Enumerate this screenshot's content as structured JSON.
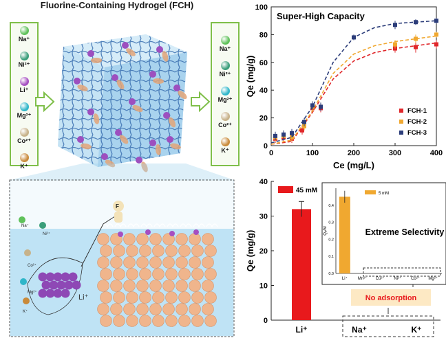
{
  "left": {
    "title": "Fluorine-Containing Hydrogel (FCH)",
    "ions_in": [
      {
        "label": "Na⁺",
        "color": "#5fc15a"
      },
      {
        "label": "Ni²⁺",
        "color": "#3a9e7a"
      },
      {
        "label": "Li⁺",
        "color": "#a64fc1"
      },
      {
        "label": "Mg²⁺",
        "color": "#2fb6c9"
      },
      {
        "label": "Co²⁺",
        "color": "#c7b28a"
      },
      {
        "label": "K⁺",
        "color": "#c98a3a"
      }
    ],
    "ions_out": [
      {
        "label": "Na⁺",
        "color": "#5fc15a"
      },
      {
        "label": "Ni²⁺",
        "color": "#3a9e7a"
      },
      {
        "label": "Mg²⁺",
        "color": "#2fb6c9"
      },
      {
        "label": "Co²⁺",
        "color": "#c7b28a"
      },
      {
        "label": "K⁺",
        "color": "#c98a3a"
      }
    ],
    "zoom_labels": {
      "na": "Na⁺",
      "ni": "Ni²⁺",
      "co": "Co²⁺",
      "mg": "Mg²⁺",
      "k": "K⁺",
      "li": "Li⁺",
      "f": "F"
    }
  },
  "chart_data": [
    {
      "type": "scatter",
      "title": "Super-High Capacity",
      "xlabel": "Ce (mg/L)",
      "ylabel": "Qe (mg/g)",
      "xlim": [
        0,
        400
      ],
      "ylim": [
        0,
        100
      ],
      "xticks": [
        0,
        100,
        200,
        300,
        400
      ],
      "yticks": [
        0,
        20,
        40,
        60,
        80,
        100
      ],
      "legend_position": "bottom-right",
      "series": [
        {
          "name": "FCH-1",
          "color": "#e0272b",
          "points": [
            [
              10,
              5
            ],
            [
              30,
              6
            ],
            [
              50,
              5
            ],
            [
              75,
              11
            ],
            [
              100,
              27
            ],
            [
              120,
              27
            ],
            [
              300,
              70
            ],
            [
              350,
              71
            ],
            [
              400,
              73
            ]
          ],
          "errors": [
            3,
            3,
            3,
            3,
            3,
            3,
            3,
            4,
            3
          ],
          "fit": [
            [
              0,
              1
            ],
            [
              50,
              3
            ],
            [
              100,
              24
            ],
            [
              150,
              48
            ],
            [
              200,
              61
            ],
            [
              250,
              67
            ],
            [
              300,
              70
            ],
            [
              350,
              72
            ],
            [
              400,
              74
            ]
          ]
        },
        {
          "name": "FCH-2",
          "color": "#f0a830",
          "points": [
            [
              10,
              6
            ],
            [
              30,
              7
            ],
            [
              50,
              6
            ],
            [
              80,
              14
            ],
            [
              100,
              28
            ],
            [
              120,
              28
            ],
            [
              300,
              73
            ],
            [
              350,
              77
            ],
            [
              400,
              80
            ]
          ],
          "errors": [
            3,
            3,
            3,
            3,
            3,
            3,
            3,
            3,
            2
          ],
          "fit": [
            [
              0,
              1
            ],
            [
              50,
              4
            ],
            [
              100,
              25
            ],
            [
              150,
              52
            ],
            [
              200,
              66
            ],
            [
              250,
              72
            ],
            [
              300,
              75
            ],
            [
              350,
              77
            ],
            [
              400,
              79
            ]
          ]
        },
        {
          "name": "FCH-3",
          "color": "#2c3d7a",
          "points": [
            [
              10,
              7
            ],
            [
              30,
              8
            ],
            [
              50,
              9
            ],
            [
              80,
              17
            ],
            [
              100,
              29
            ],
            [
              120,
              28
            ],
            [
              200,
              78
            ],
            [
              300,
              87
            ],
            [
              350,
              89
            ],
            [
              400,
              90
            ]
          ],
          "errors": [
            3,
            3,
            3,
            3,
            3,
            3,
            2,
            3,
            2,
            2
          ],
          "fit": [
            [
              0,
              2
            ],
            [
              50,
              6
            ],
            [
              100,
              28
            ],
            [
              150,
              60
            ],
            [
              200,
              78
            ],
            [
              250,
              85
            ],
            [
              300,
              88
            ],
            [
              350,
              89
            ],
            [
              400,
              90
            ]
          ]
        }
      ]
    },
    {
      "type": "bar",
      "title": "",
      "ylabel": "Qe (mg/g)",
      "ylim": [
        0,
        40
      ],
      "yticks": [
        0,
        10,
        20,
        30,
        40
      ],
      "categories": [
        "Li⁺",
        "Na⁺",
        "K⁺"
      ],
      "series": [
        {
          "name": "45 mM",
          "color": "#e8191c",
          "values": [
            32,
            0,
            0
          ],
          "errors": [
            2.2,
            0,
            0
          ]
        }
      ],
      "annotation": "No adsorption"
    },
    {
      "type": "bar",
      "title": "Extreme Selectivity",
      "ylabel": "Qₑ/M",
      "ylim": [
        0,
        0.5
      ],
      "yticks": [
        0.0,
        0.1,
        0.2,
        0.3,
        0.4
      ],
      "categories": [
        "Li⁺",
        "Mn²⁺",
        "Cu²⁺",
        "Ni²⁺",
        "Co²⁺",
        "Mg²⁺"
      ],
      "series": [
        {
          "name": "5 mM",
          "color": "#f0a830",
          "values": [
            0.45,
            0,
            0,
            0,
            0,
            0
          ],
          "errors": [
            0.035,
            0,
            0,
            0,
            0,
            0
          ]
        }
      ]
    }
  ]
}
